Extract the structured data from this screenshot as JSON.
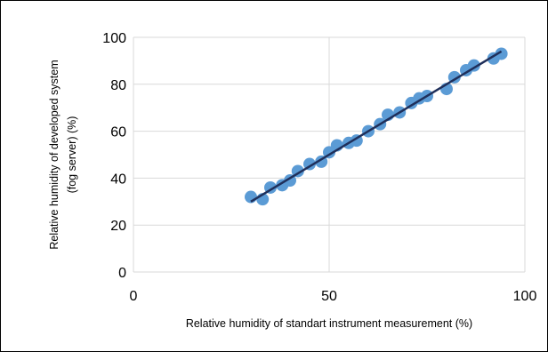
{
  "chart_data": {
    "type": "scatter",
    "title": "",
    "xlabel": "Relative humidity of standart instrument measurement (%)",
    "ylabel_line1": "Relative humidity  of developed system",
    "ylabel_line2": "(fog server) (%)",
    "xlim": [
      0,
      100
    ],
    "ylim": [
      0,
      100
    ],
    "x_ticks": [
      0,
      50,
      100
    ],
    "y_ticks": [
      0,
      20,
      40,
      60,
      80,
      100
    ],
    "grid": "major vertical and horizontal",
    "legend": "none",
    "trendline": {
      "type": "linear",
      "x_start": 30,
      "x_end": 94,
      "y_start": 30,
      "y_end": 94,
      "color": "#1f2f5a"
    },
    "marker_color": "#5b9bd5",
    "series": [
      {
        "x": [
          30,
          33,
          35,
          38,
          40,
          42,
          45,
          48,
          50,
          52,
          55,
          57,
          60,
          63,
          65,
          68,
          71,
          73,
          75,
          80,
          82,
          85,
          87,
          92,
          94
        ],
        "y": [
          32,
          31,
          36,
          37,
          39,
          43,
          46,
          47,
          51,
          54,
          55,
          56,
          60,
          63,
          67,
          68,
          72,
          74,
          75,
          78,
          83,
          86,
          88,
          91,
          93
        ]
      }
    ]
  }
}
